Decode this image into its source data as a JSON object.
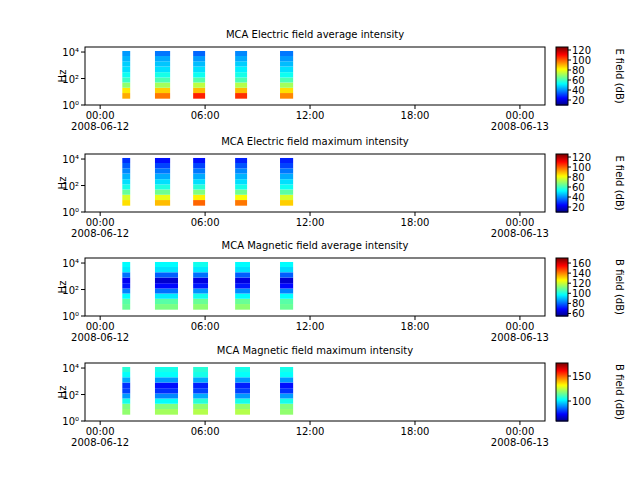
{
  "chart_data": [
    {
      "type": "heatmap",
      "title": "MCA  Electric field average intensity",
      "y_label": "Hz",
      "log": "y",
      "xlim": [
        "2008-06-11T23:08",
        "2008-06-13T01:26"
      ],
      "xticks": [
        {
          "value": "2008-06-12T00:00",
          "label": "00:00\n2008-06-12"
        },
        {
          "value": "2008-06-12T06:00",
          "label": "06:00"
        },
        {
          "value": "2008-06-12T12:00",
          "label": "12:00"
        },
        {
          "value": "2008-06-12T18:00",
          "label": "18:00"
        },
        {
          "value": "2008-06-13T00:00",
          "label": "00:00\n2008-06-13"
        }
      ],
      "ylim": [
        1,
        24000
      ],
      "yticks": [
        {
          "value": 1,
          "label": "10⁰"
        },
        {
          "value": 100,
          "label": "10²"
        },
        {
          "value": 10000,
          "label": "10⁴"
        }
      ],
      "colorbar": {
        "label": "E field (dB)",
        "range": [
          10,
          126
        ],
        "ticks": [
          20,
          40,
          60,
          80,
          100,
          120
        ]
      },
      "freq_edges": [
        3,
        8,
        20,
        50,
        120,
        300,
        800,
        2000,
        5000,
        12000
      ],
      "bursts": [
        {
          "start": "2008-06-12T01:16",
          "end": "2008-06-12T01:43",
          "values": [
            92,
            85,
            70,
            60,
            55,
            50,
            48,
            45,
            42
          ]
        },
        {
          "start": "2008-06-12T03:08",
          "end": "2008-06-12T04:00",
          "values": [
            98,
            88,
            72,
            62,
            56,
            50,
            47,
            44,
            38
          ]
        },
        {
          "start": "2008-06-12T05:19",
          "end": "2008-06-12T06:00",
          "values": [
            108,
            90,
            75,
            63,
            55,
            50,
            46,
            42,
            36
          ]
        },
        {
          "start": "2008-06-12T07:43",
          "end": "2008-06-12T08:24",
          "values": [
            106,
            90,
            74,
            62,
            56,
            52,
            48,
            44,
            40
          ]
        },
        {
          "start": "2008-06-12T10:17",
          "end": "2008-06-12T11:02",
          "values": [
            96,
            86,
            72,
            62,
            55,
            50,
            46,
            42,
            38
          ]
        }
      ]
    },
    {
      "type": "heatmap",
      "title": "MCA  Electric field maximum intensity",
      "y_label": "Hz",
      "log": "y",
      "xlim": [
        "2008-06-11T23:08",
        "2008-06-13T01:26"
      ],
      "xticks": [
        {
          "value": "2008-06-12T00:00",
          "label": "00:00\n2008-06-12"
        },
        {
          "value": "2008-06-12T06:00",
          "label": "06:00"
        },
        {
          "value": "2008-06-12T12:00",
          "label": "12:00"
        },
        {
          "value": "2008-06-12T18:00",
          "label": "18:00"
        },
        {
          "value": "2008-06-13T00:00",
          "label": "00:00\n2008-06-13"
        }
      ],
      "ylim": [
        1,
        24000
      ],
      "yticks": [
        {
          "value": 1,
          "label": "10⁰"
        },
        {
          "value": 100,
          "label": "10²"
        },
        {
          "value": 10000,
          "label": "10⁴"
        }
      ],
      "colorbar": {
        "label": "E field (dB)",
        "range": [
          10,
          126
        ],
        "ticks": [
          20,
          40,
          60,
          80,
          100,
          120
        ]
      },
      "freq_edges": [
        3,
        8,
        20,
        50,
        120,
        300,
        800,
        2000,
        5000,
        12000
      ],
      "bursts": [
        {
          "start": "2008-06-12T01:16",
          "end": "2008-06-12T01:43",
          "values": [
            86,
            78,
            65,
            56,
            50,
            45,
            40,
            35,
            30
          ]
        },
        {
          "start": "2008-06-12T03:08",
          "end": "2008-06-12T04:00",
          "values": [
            90,
            80,
            66,
            57,
            50,
            44,
            38,
            32,
            26
          ]
        },
        {
          "start": "2008-06-12T05:19",
          "end": "2008-06-12T06:00",
          "values": [
            100,
            84,
            68,
            58,
            50,
            44,
            38,
            32,
            26
          ]
        },
        {
          "start": "2008-06-12T07:43",
          "end": "2008-06-12T08:24",
          "values": [
            98,
            82,
            66,
            56,
            50,
            45,
            40,
            34,
            28
          ]
        },
        {
          "start": "2008-06-12T10:17",
          "end": "2008-06-12T11:02",
          "values": [
            88,
            78,
            64,
            55,
            50,
            44,
            38,
            32,
            28
          ]
        }
      ]
    },
    {
      "type": "heatmap",
      "title": "MCA  Magnetic field average intensity",
      "y_label": "Hz",
      "log": "y",
      "xlim": [
        "2008-06-11T23:08",
        "2008-06-13T01:26"
      ],
      "xticks": [
        {
          "value": "2008-06-12T00:00",
          "label": "00:00\n2008-06-12"
        },
        {
          "value": "2008-06-12T06:00",
          "label": "06:00"
        },
        {
          "value": "2008-06-12T12:00",
          "label": "12:00"
        },
        {
          "value": "2008-06-12T18:00",
          "label": "18:00"
        },
        {
          "value": "2008-06-13T00:00",
          "label": "00:00\n2008-06-13"
        }
      ],
      "ylim": [
        1,
        24000
      ],
      "yticks": [
        {
          "value": 1,
          "label": "10⁰"
        },
        {
          "value": 100,
          "label": "10²"
        },
        {
          "value": 10000,
          "label": "10⁴"
        }
      ],
      "colorbar": {
        "label": "B field (dB)",
        "range": [
          55,
          170
        ],
        "ticks": [
          60,
          80,
          100,
          120,
          140,
          160
        ]
      },
      "freq_edges": [
        3,
        8,
        20,
        50,
        120,
        300,
        800,
        2000,
        5000,
        12000
      ],
      "bursts": [
        {
          "start": "2008-06-12T01:16",
          "end": "2008-06-12T01:43",
          "values": [
            110,
            108,
            98,
            84,
            72,
            68,
            82,
            96,
            98
          ]
        },
        {
          "start": "2008-06-12T03:08",
          "end": "2008-06-12T04:27",
          "values": [
            112,
            108,
            96,
            82,
            70,
            64,
            80,
            95,
            98
          ]
        },
        {
          "start": "2008-06-12T05:19",
          "end": "2008-06-12T06:10",
          "values": [
            114,
            110,
            100,
            86,
            72,
            66,
            82,
            96,
            100
          ]
        },
        {
          "start": "2008-06-12T07:43",
          "end": "2008-06-12T08:34",
          "values": [
            114,
            110,
            98,
            85,
            72,
            66,
            80,
            95,
            98
          ]
        },
        {
          "start": "2008-06-12T10:17",
          "end": "2008-06-12T11:02",
          "values": [
            110,
            108,
            98,
            84,
            70,
            64,
            80,
            94,
            98
          ]
        }
      ]
    },
    {
      "type": "heatmap",
      "title": "MCA  Magnetic field maximum intensity",
      "y_label": "Hz",
      "log": "y",
      "xlim": [
        "2008-06-11T23:08",
        "2008-06-13T01:26"
      ],
      "xticks": [
        {
          "value": "2008-06-12T00:00",
          "label": "00:00\n2008-06-12"
        },
        {
          "value": "2008-06-12T06:00",
          "label": "06:00"
        },
        {
          "value": "2008-06-12T12:00",
          "label": "12:00"
        },
        {
          "value": "2008-06-12T18:00",
          "label": "18:00"
        },
        {
          "value": "2008-06-13T00:00",
          "label": "00:00\n2008-06-13"
        }
      ],
      "ylim": [
        1,
        24000
      ],
      "yticks": [
        {
          "value": 1,
          "label": "10⁰"
        },
        {
          "value": 100,
          "label": "10²"
        },
        {
          "value": 10000,
          "label": "10⁴"
        }
      ],
      "colorbar": {
        "label": "B field (dB)",
        "range": [
          60,
          176
        ],
        "ticks": [
          100,
          150
        ]
      },
      "freq_edges": [
        3,
        8,
        20,
        50,
        120,
        300,
        800,
        2000,
        5000,
        12000
      ],
      "bursts": [
        {
          "start": "2008-06-12T01:16",
          "end": "2008-06-12T01:43",
          "values": [
            120,
            118,
            106,
            92,
            82,
            80,
            94,
            104,
            108
          ]
        },
        {
          "start": "2008-06-12T03:08",
          "end": "2008-06-12T04:27",
          "values": [
            122,
            118,
            104,
            90,
            80,
            76,
            92,
            104,
            106
          ]
        },
        {
          "start": "2008-06-12T05:19",
          "end": "2008-06-12T06:10",
          "values": [
            124,
            120,
            108,
            94,
            82,
            78,
            94,
            106,
            108
          ]
        },
        {
          "start": "2008-06-12T07:43",
          "end": "2008-06-12T08:34",
          "values": [
            124,
            120,
            106,
            92,
            82,
            78,
            92,
            104,
            106
          ]
        },
        {
          "start": "2008-06-12T10:17",
          "end": "2008-06-12T11:02",
          "values": [
            120,
            118,
            106,
            92,
            80,
            76,
            92,
            104,
            106
          ]
        }
      ]
    }
  ]
}
